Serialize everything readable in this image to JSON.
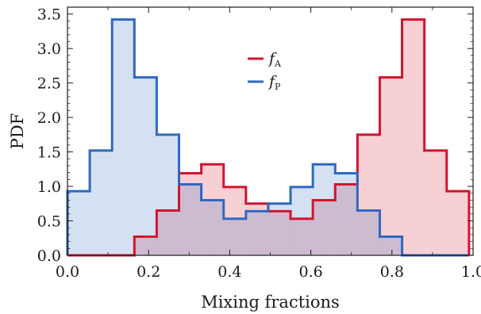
{
  "chart_data": {
    "type": "histogram",
    "xlabel": "Mixing fractions",
    "ylabel": "PDF",
    "xlim": [
      0.0,
      1.0
    ],
    "ylim": [
      0.0,
      3.6
    ],
    "grid": false,
    "legend_position": "top-center",
    "x_ticks": [
      "0.0",
      "0.2",
      "0.4",
      "0.6",
      "0.8",
      "1.0"
    ],
    "y_ticks": [
      "0.0",
      "0.5",
      "1.0",
      "1.5",
      "2.0",
      "2.5",
      "3.0",
      "3.5"
    ],
    "bin_edges": [
      0.0,
      0.055,
      0.11,
      0.165,
      0.22,
      0.275,
      0.33,
      0.385,
      0.44,
      0.495,
      0.55,
      0.605,
      0.66,
      0.715,
      0.77,
      0.825,
      0.88,
      0.935,
      0.99
    ],
    "series": [
      {
        "name_main": "f",
        "name_sub": "A",
        "color": "#d2142d",
        "fill": "#f4c4ca",
        "values": [
          0.0,
          0.0,
          0.0,
          0.27,
          0.65,
          1.19,
          1.32,
          0.99,
          0.75,
          0.64,
          0.53,
          0.8,
          1.03,
          1.75,
          2.58,
          3.42,
          1.52,
          0.93
        ]
      },
      {
        "name_main": "f",
        "name_sub": "P",
        "color": "#2f68c0",
        "fill": "#cfdcef",
        "values": [
          0.93,
          1.52,
          3.42,
          2.58,
          1.75,
          1.03,
          0.8,
          0.53,
          0.64,
          0.75,
          0.99,
          1.32,
          1.19,
          0.65,
          0.27,
          0.0,
          0.0,
          0.0
        ]
      }
    ]
  }
}
